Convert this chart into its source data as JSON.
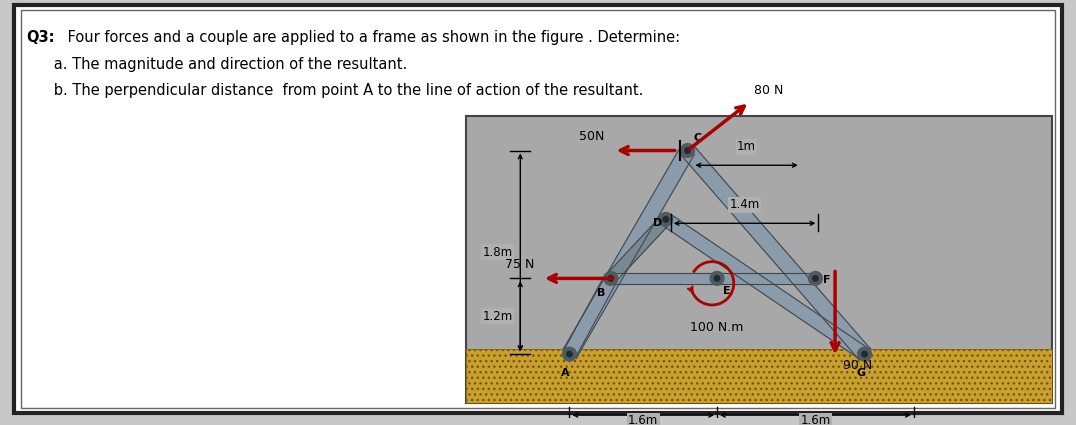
{
  "q_bold": "Q3:",
  "q_text": " Four forces and a couple are applied to a frame as shown in the figure . Determine:",
  "line_a": "      a. The magnitude and direction of the resultant.",
  "line_b": "      b. The perpendicular distance  from point A to the line of action of the resultant.",
  "panel_bg": "#a8a8a8",
  "ground_fill": "#c8a030",
  "arrow_red": "#aa0000",
  "white_bg": "#ffffff",
  "outer_border": "#222222",
  "inner_border": "#555555",
  "beam_fill": "#8c9baa",
  "beam_edge": "#505a60",
  "pin_fill": "#5a6065",
  "label_bg": "#c0c0c0"
}
